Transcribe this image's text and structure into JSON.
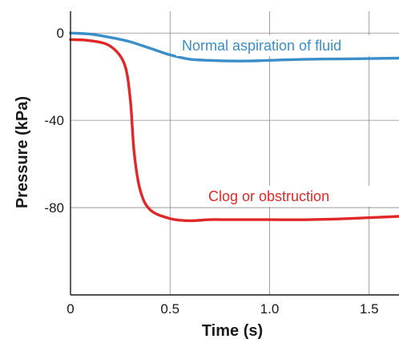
{
  "chart_data": {
    "type": "line",
    "xlabel": "Time (s)",
    "ylabel": "Pressure (kPa)",
    "xlim": [
      0,
      1.65
    ],
    "ylim": [
      -120,
      10
    ],
    "x_ticks": [
      0,
      0.5,
      1.0,
      1.5
    ],
    "x_tick_labels": [
      "0",
      "0.5",
      "1.0",
      "1.5"
    ],
    "y_ticks": [
      0,
      -40,
      -80
    ],
    "y_tick_labels": [
      "0",
      "-40",
      "-80"
    ],
    "grid": true,
    "series": [
      {
        "name": "Normal aspiration of fluid",
        "color": "#3b8ec8",
        "x": [
          0,
          0.1,
          0.2,
          0.3,
          0.4,
          0.5,
          0.6,
          0.7,
          0.8,
          0.9,
          1.0,
          1.2,
          1.4,
          1.65
        ],
        "y": [
          0,
          -0.5,
          -2,
          -4,
          -7,
          -10,
          -12,
          -12.5,
          -12.8,
          -12.8,
          -12.5,
          -12,
          -11.8,
          -11.5
        ]
      },
      {
        "name": "Clog or obstruction",
        "color": "#e02828",
        "x": [
          0,
          0.1,
          0.2,
          0.27,
          0.3,
          0.32,
          0.35,
          0.4,
          0.5,
          0.6,
          0.7,
          0.8,
          1.0,
          1.2,
          1.4,
          1.65
        ],
        "y": [
          -3,
          -3.5,
          -6,
          -14,
          -30,
          -55,
          -72,
          -81,
          -85,
          -86,
          -85.5,
          -85.5,
          -85.5,
          -85.5,
          -85,
          -84
        ]
      }
    ]
  }
}
